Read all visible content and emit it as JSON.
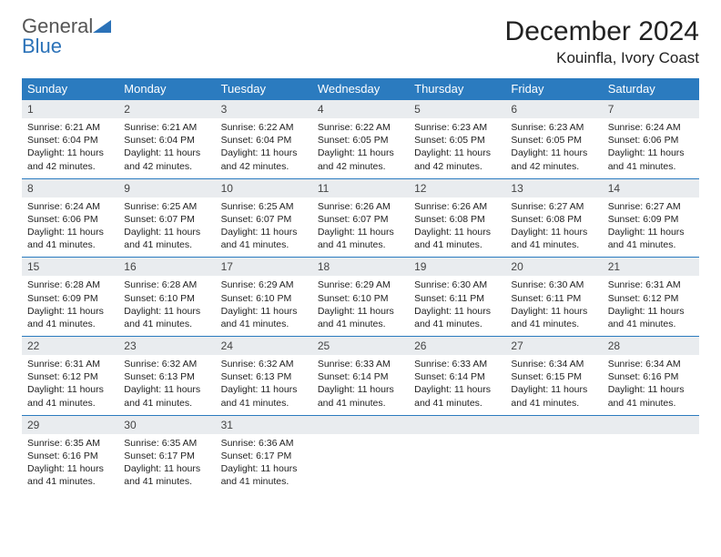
{
  "brand": {
    "part1": "General",
    "part2": "Blue"
  },
  "title": "December 2024",
  "location": "Kouinfla, Ivory Coast",
  "colors": {
    "header_bg": "#2b7bbf",
    "header_text": "#ffffff",
    "daynum_bg": "#e9ecef",
    "border": "#2b7bbf",
    "text": "#222222",
    "brand_gray": "#555555",
    "brand_blue": "#2b72b8"
  },
  "typography": {
    "title_fontsize": 30,
    "location_fontsize": 17,
    "weekday_fontsize": 13,
    "daynum_fontsize": 12,
    "body_fontsize": 10.5
  },
  "weekdays": [
    "Sunday",
    "Monday",
    "Tuesday",
    "Wednesday",
    "Thursday",
    "Friday",
    "Saturday"
  ],
  "days": [
    {
      "n": 1,
      "sunrise": "6:21 AM",
      "sunset": "6:04 PM",
      "daylight": "11 hours and 42 minutes."
    },
    {
      "n": 2,
      "sunrise": "6:21 AM",
      "sunset": "6:04 PM",
      "daylight": "11 hours and 42 minutes."
    },
    {
      "n": 3,
      "sunrise": "6:22 AM",
      "sunset": "6:04 PM",
      "daylight": "11 hours and 42 minutes."
    },
    {
      "n": 4,
      "sunrise": "6:22 AM",
      "sunset": "6:05 PM",
      "daylight": "11 hours and 42 minutes."
    },
    {
      "n": 5,
      "sunrise": "6:23 AM",
      "sunset": "6:05 PM",
      "daylight": "11 hours and 42 minutes."
    },
    {
      "n": 6,
      "sunrise": "6:23 AM",
      "sunset": "6:05 PM",
      "daylight": "11 hours and 42 minutes."
    },
    {
      "n": 7,
      "sunrise": "6:24 AM",
      "sunset": "6:06 PM",
      "daylight": "11 hours and 41 minutes."
    },
    {
      "n": 8,
      "sunrise": "6:24 AM",
      "sunset": "6:06 PM",
      "daylight": "11 hours and 41 minutes."
    },
    {
      "n": 9,
      "sunrise": "6:25 AM",
      "sunset": "6:07 PM",
      "daylight": "11 hours and 41 minutes."
    },
    {
      "n": 10,
      "sunrise": "6:25 AM",
      "sunset": "6:07 PM",
      "daylight": "11 hours and 41 minutes."
    },
    {
      "n": 11,
      "sunrise": "6:26 AM",
      "sunset": "6:07 PM",
      "daylight": "11 hours and 41 minutes."
    },
    {
      "n": 12,
      "sunrise": "6:26 AM",
      "sunset": "6:08 PM",
      "daylight": "11 hours and 41 minutes."
    },
    {
      "n": 13,
      "sunrise": "6:27 AM",
      "sunset": "6:08 PM",
      "daylight": "11 hours and 41 minutes."
    },
    {
      "n": 14,
      "sunrise": "6:27 AM",
      "sunset": "6:09 PM",
      "daylight": "11 hours and 41 minutes."
    },
    {
      "n": 15,
      "sunrise": "6:28 AM",
      "sunset": "6:09 PM",
      "daylight": "11 hours and 41 minutes."
    },
    {
      "n": 16,
      "sunrise": "6:28 AM",
      "sunset": "6:10 PM",
      "daylight": "11 hours and 41 minutes."
    },
    {
      "n": 17,
      "sunrise": "6:29 AM",
      "sunset": "6:10 PM",
      "daylight": "11 hours and 41 minutes."
    },
    {
      "n": 18,
      "sunrise": "6:29 AM",
      "sunset": "6:10 PM",
      "daylight": "11 hours and 41 minutes."
    },
    {
      "n": 19,
      "sunrise": "6:30 AM",
      "sunset": "6:11 PM",
      "daylight": "11 hours and 41 minutes."
    },
    {
      "n": 20,
      "sunrise": "6:30 AM",
      "sunset": "6:11 PM",
      "daylight": "11 hours and 41 minutes."
    },
    {
      "n": 21,
      "sunrise": "6:31 AM",
      "sunset": "6:12 PM",
      "daylight": "11 hours and 41 minutes."
    },
    {
      "n": 22,
      "sunrise": "6:31 AM",
      "sunset": "6:12 PM",
      "daylight": "11 hours and 41 minutes."
    },
    {
      "n": 23,
      "sunrise": "6:32 AM",
      "sunset": "6:13 PM",
      "daylight": "11 hours and 41 minutes."
    },
    {
      "n": 24,
      "sunrise": "6:32 AM",
      "sunset": "6:13 PM",
      "daylight": "11 hours and 41 minutes."
    },
    {
      "n": 25,
      "sunrise": "6:33 AM",
      "sunset": "6:14 PM",
      "daylight": "11 hours and 41 minutes."
    },
    {
      "n": 26,
      "sunrise": "6:33 AM",
      "sunset": "6:14 PM",
      "daylight": "11 hours and 41 minutes."
    },
    {
      "n": 27,
      "sunrise": "6:34 AM",
      "sunset": "6:15 PM",
      "daylight": "11 hours and 41 minutes."
    },
    {
      "n": 28,
      "sunrise": "6:34 AM",
      "sunset": "6:16 PM",
      "daylight": "11 hours and 41 minutes."
    },
    {
      "n": 29,
      "sunrise": "6:35 AM",
      "sunset": "6:16 PM",
      "daylight": "11 hours and 41 minutes."
    },
    {
      "n": 30,
      "sunrise": "6:35 AM",
      "sunset": "6:17 PM",
      "daylight": "11 hours and 41 minutes."
    },
    {
      "n": 31,
      "sunrise": "6:36 AM",
      "sunset": "6:17 PM",
      "daylight": "11 hours and 41 minutes."
    }
  ],
  "labels": {
    "sunrise": "Sunrise:",
    "sunset": "Sunset:",
    "daylight": "Daylight:"
  },
  "layout": {
    "start_weekday_index": 0,
    "columns": 7
  }
}
